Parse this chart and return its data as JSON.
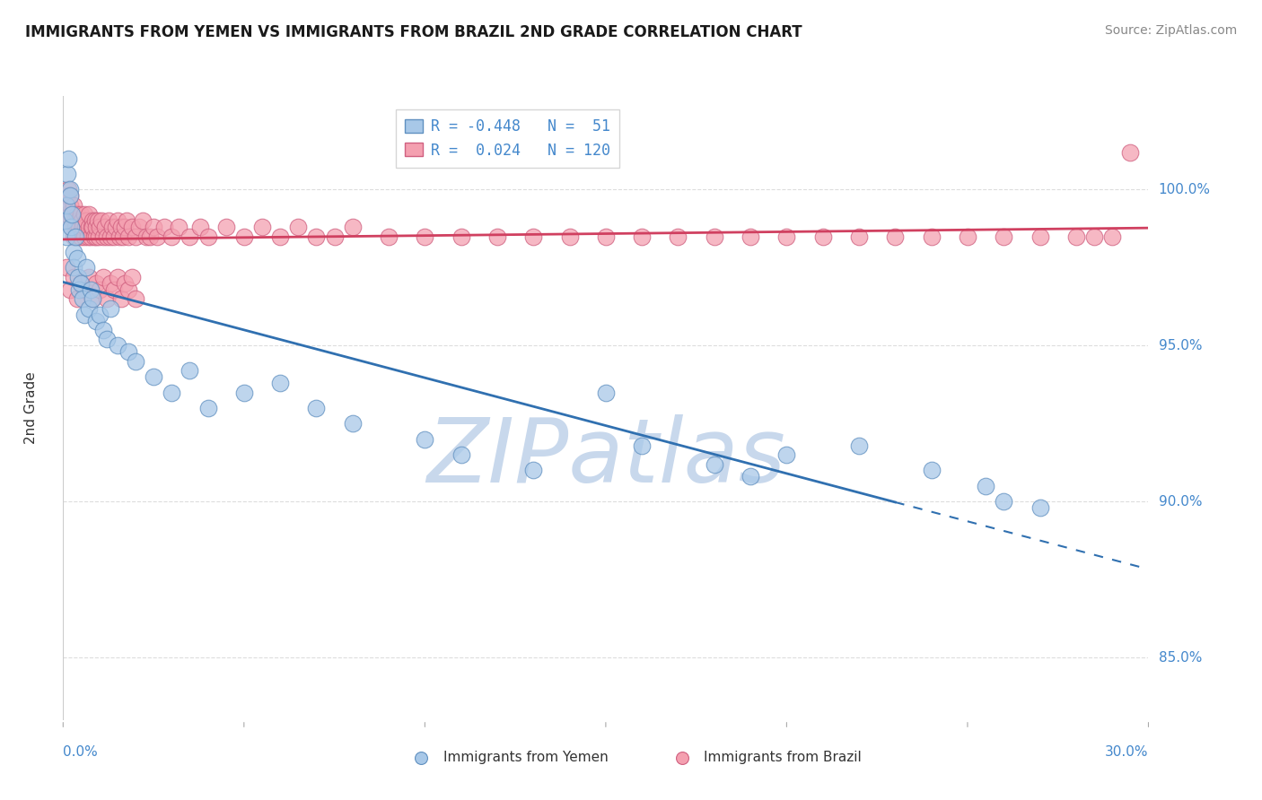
{
  "title": "IMMIGRANTS FROM YEMEN VS IMMIGRANTS FROM BRAZIL 2ND GRADE CORRELATION CHART",
  "source": "Source: ZipAtlas.com",
  "ylabel": "2nd Grade",
  "yticks": [
    85.0,
    90.0,
    95.0,
    100.0
  ],
  "xmin": 0.0,
  "xmax": 30.0,
  "ymin": 83.0,
  "ymax": 103.0,
  "yemen_R": -0.448,
  "yemen_N": 51,
  "brazil_R": 0.024,
  "brazil_N": 120,
  "yemen_color": "#A8C8E8",
  "brazil_color": "#F4A0B0",
  "yemen_edge_color": "#6090C0",
  "brazil_edge_color": "#D06080",
  "yemen_line_color": "#3070B0",
  "brazil_line_color": "#D04060",
  "watermark_color": "#C8D8EC",
  "title_color": "#1A1A1A",
  "source_color": "#888888",
  "axis_label_color": "#4488CC",
  "grid_color": "#DDDDDD",
  "background_color": "#FFFFFF",
  "legend_r_color": "#4488CC",
  "bottom_label_color": "#333333",
  "yemen_x": [
    0.05,
    0.08,
    0.1,
    0.12,
    0.15,
    0.18,
    0.2,
    0.22,
    0.25,
    0.28,
    0.3,
    0.35,
    0.4,
    0.42,
    0.45,
    0.5,
    0.55,
    0.6,
    0.65,
    0.7,
    0.75,
    0.8,
    0.9,
    1.0,
    1.1,
    1.2,
    1.3,
    1.5,
    1.8,
    2.0,
    2.5,
    3.0,
    3.5,
    4.0,
    5.0,
    6.0,
    7.0,
    8.0,
    10.0,
    11.0,
    13.0,
    15.0,
    16.0,
    18.0,
    19.0,
    20.0,
    22.0,
    24.0,
    25.5,
    26.0,
    27.0
  ],
  "yemen_y": [
    99.0,
    98.5,
    99.5,
    100.5,
    101.0,
    100.0,
    99.8,
    98.8,
    99.2,
    98.0,
    97.5,
    98.5,
    97.8,
    97.2,
    96.8,
    97.0,
    96.5,
    96.0,
    97.5,
    96.2,
    96.8,
    96.5,
    95.8,
    96.0,
    95.5,
    95.2,
    96.2,
    95.0,
    94.8,
    94.5,
    94.0,
    93.5,
    94.2,
    93.0,
    93.5,
    93.8,
    93.0,
    92.5,
    92.0,
    91.5,
    91.0,
    93.5,
    91.8,
    91.2,
    90.8,
    91.5,
    91.8,
    91.0,
    90.5,
    90.0,
    89.8
  ],
  "brazil_x": [
    0.05,
    0.08,
    0.1,
    0.12,
    0.15,
    0.18,
    0.2,
    0.22,
    0.25,
    0.28,
    0.3,
    0.32,
    0.35,
    0.38,
    0.4,
    0.42,
    0.45,
    0.48,
    0.5,
    0.52,
    0.55,
    0.58,
    0.6,
    0.62,
    0.65,
    0.68,
    0.7,
    0.72,
    0.75,
    0.78,
    0.8,
    0.82,
    0.85,
    0.88,
    0.9,
    0.92,
    0.95,
    0.98,
    1.0,
    1.05,
    1.1,
    1.15,
    1.2,
    1.25,
    1.3,
    1.35,
    1.4,
    1.45,
    1.5,
    1.55,
    1.6,
    1.65,
    1.7,
    1.75,
    1.8,
    1.9,
    2.0,
    2.1,
    2.2,
    2.3,
    2.4,
    2.5,
    2.6,
    2.8,
    3.0,
    3.2,
    3.5,
    3.8,
    4.0,
    4.5,
    5.0,
    5.5,
    6.0,
    6.5,
    7.0,
    7.5,
    8.0,
    9.0,
    10.0,
    11.0,
    12.0,
    13.0,
    14.0,
    15.0,
    16.0,
    17.0,
    18.0,
    19.0,
    20.0,
    21.0,
    22.0,
    23.0,
    24.0,
    25.0,
    26.0,
    27.0,
    28.0,
    28.5,
    29.0,
    29.5,
    0.1,
    0.2,
    0.3,
    0.4,
    0.5,
    0.6,
    0.7,
    0.8,
    0.9,
    1.0,
    1.1,
    1.2,
    1.3,
    1.4,
    1.5,
    1.6,
    1.7,
    1.8,
    1.9,
    2.0
  ],
  "brazil_y": [
    99.5,
    99.0,
    99.8,
    99.2,
    100.0,
    99.5,
    99.8,
    99.2,
    98.8,
    99.5,
    98.5,
    99.0,
    98.8,
    99.2,
    98.5,
    99.0,
    98.8,
    99.2,
    98.5,
    99.0,
    98.8,
    99.2,
    98.5,
    98.8,
    99.0,
    98.5,
    98.8,
    99.2,
    98.5,
    98.8,
    99.0,
    98.8,
    98.5,
    99.0,
    98.5,
    98.8,
    99.0,
    98.5,
    98.8,
    99.0,
    98.5,
    98.8,
    98.5,
    99.0,
    98.5,
    98.8,
    98.5,
    98.8,
    99.0,
    98.5,
    98.8,
    98.5,
    98.8,
    99.0,
    98.5,
    98.8,
    98.5,
    98.8,
    99.0,
    98.5,
    98.5,
    98.8,
    98.5,
    98.8,
    98.5,
    98.8,
    98.5,
    98.8,
    98.5,
    98.8,
    98.5,
    98.8,
    98.5,
    98.8,
    98.5,
    98.5,
    98.8,
    98.5,
    98.5,
    98.5,
    98.5,
    98.5,
    98.5,
    98.5,
    98.5,
    98.5,
    98.5,
    98.5,
    98.5,
    98.5,
    98.5,
    98.5,
    98.5,
    98.5,
    98.5,
    98.5,
    98.5,
    98.5,
    98.5,
    101.2,
    97.5,
    96.8,
    97.2,
    96.5,
    97.0,
    96.8,
    97.2,
    96.5,
    97.0,
    96.8,
    97.2,
    96.5,
    97.0,
    96.8,
    97.2,
    96.5,
    97.0,
    96.8,
    97.2,
    96.5
  ]
}
